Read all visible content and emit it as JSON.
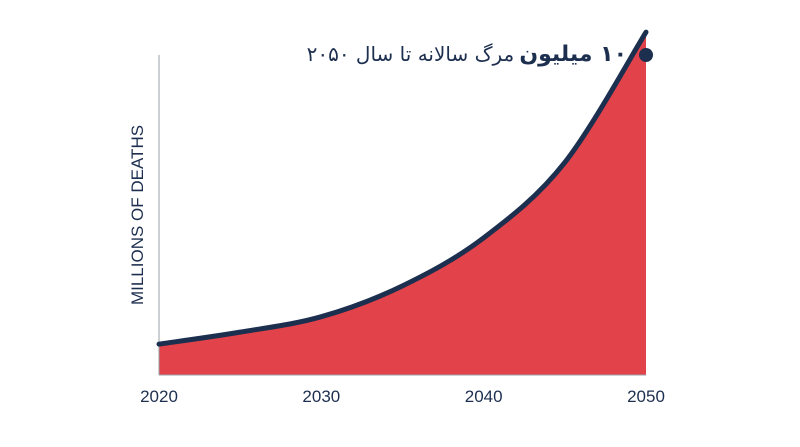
{
  "chart_data": {
    "type": "area",
    "title": "",
    "xlabel": "",
    "ylabel": "MILLIONS OF DEATHS",
    "x": [
      2020,
      2025,
      2030,
      2035,
      2040,
      2045,
      2050
    ],
    "series": [
      {
        "values": [
          0.9,
          1.25,
          1.7,
          2.6,
          4.0,
          6.2,
          10.0
        ]
      }
    ],
    "xticks": [
      "2020",
      "2030",
      "2040",
      "2050"
    ],
    "xlim": [
      2020,
      2050
    ],
    "ylim": [
      0,
      10.5
    ],
    "grid": false,
    "annotation": {
      "bold_text": "۱۰ میلیون",
      "text": "مرگ سالانه تا سال ۲۰۵۰",
      "x": 2050,
      "y": 10.0
    },
    "colors": {
      "fill": "#e2434a",
      "line": "#1d2f4f",
      "axis": "#9aa1ab",
      "text": "#1d2f4f"
    }
  }
}
